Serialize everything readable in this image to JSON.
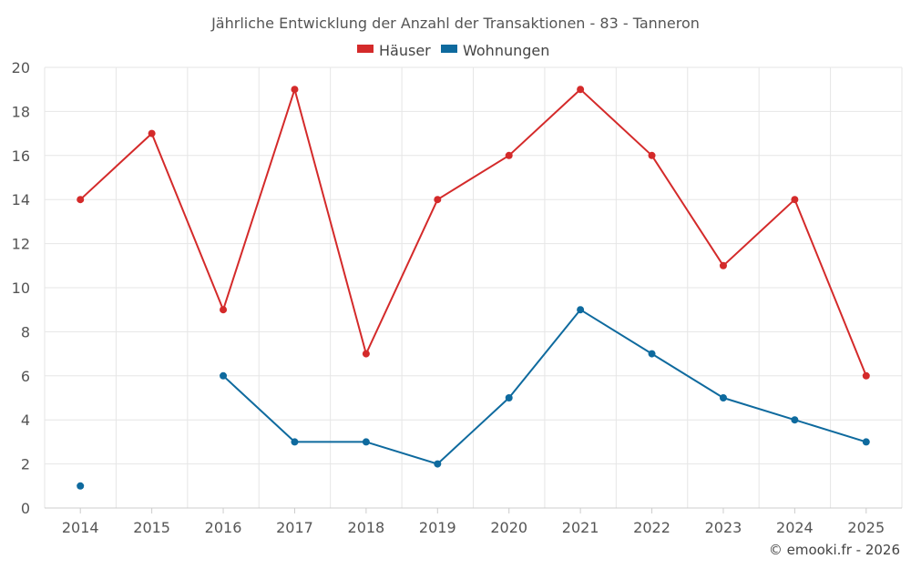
{
  "chart_data": {
    "type": "line",
    "title": "Jährliche Entwicklung der Anzahl der Transaktionen - 83 - Tanneron",
    "categories": [
      "2014",
      "2015",
      "2016",
      "2017",
      "2018",
      "2019",
      "2020",
      "2021",
      "2022",
      "2023",
      "2024",
      "2025"
    ],
    "series": [
      {
        "name": "Häuser",
        "color": "#d42a2a",
        "values": [
          14,
          17,
          9,
          19,
          7,
          14,
          16,
          19,
          16,
          11,
          14,
          6
        ]
      },
      {
        "name": "Wohnungen",
        "color": "#0e6a9e",
        "values": [
          1,
          null,
          6,
          3,
          3,
          2,
          5,
          9,
          7,
          5,
          4,
          3
        ]
      }
    ],
    "ylim": [
      0,
      20
    ],
    "yticks": [
      0,
      2,
      4,
      6,
      8,
      10,
      12,
      14,
      16,
      18,
      20
    ],
    "ytick_labels": [
      "0",
      "2",
      "4",
      "6",
      "8",
      "10",
      "12",
      "14",
      "16",
      "18",
      "20"
    ],
    "xlabel": "",
    "ylabel": "",
    "grid": true,
    "legend_position": "top-center"
  },
  "credit": "© emooki.fr - 2026"
}
